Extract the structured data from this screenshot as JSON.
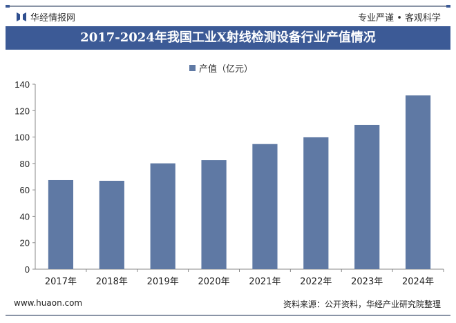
{
  "header": {
    "brand": "华经情报网",
    "slogan": "专业严谨 • 客观科学",
    "title": "2017-2024年我国工业X射线检测设备行业产值情况"
  },
  "footer": {
    "url": "www.huaon.com",
    "source": "资料来源：公开资料，华经产业研究院整理"
  },
  "colors": {
    "bar": "#5f79a4",
    "title_bg": "#3c5a96"
  },
  "chart_data": {
    "type": "bar",
    "title": "",
    "xlabel": "",
    "ylabel": "",
    "categories": [
      "2017年",
      "2018年",
      "2019年",
      "2020年",
      "2021年",
      "2022年",
      "2023年",
      "2024年"
    ],
    "series": [
      {
        "name": "产值（亿元）",
        "values": [
          67.4,
          66.9,
          80.1,
          82.5,
          94.7,
          99.8,
          109.2,
          131.5
        ]
      }
    ],
    "ylim": [
      0,
      140
    ],
    "yticks": [
      0,
      20,
      40,
      60,
      80,
      100,
      120,
      140
    ],
    "grid": false,
    "legend": "top-center"
  }
}
